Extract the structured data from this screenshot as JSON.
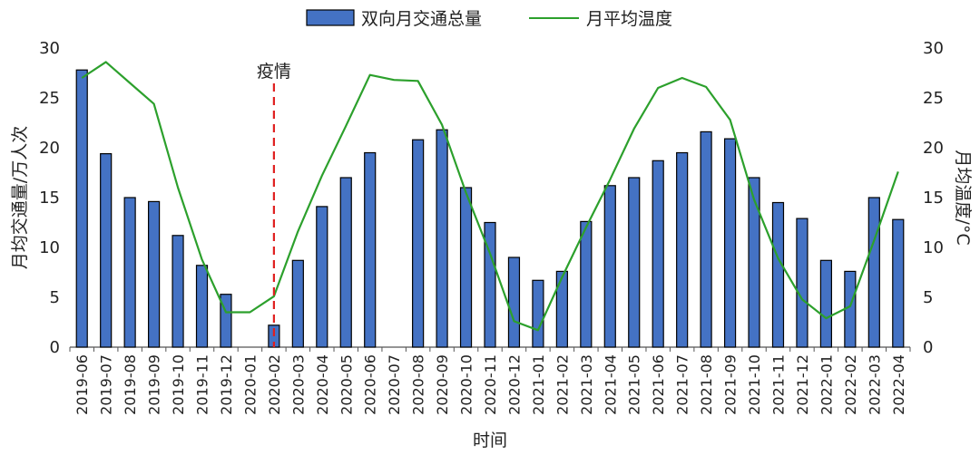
{
  "chart_data": {
    "type": "bar",
    "title": "",
    "xlabel": "时间",
    "ylabel": "月均交通量/万人次",
    "y2label": "月均温度/°C",
    "ylim": [
      0,
      30
    ],
    "y2lim": [
      0,
      30
    ],
    "yticks": [
      "0",
      "5",
      "10",
      "15",
      "20",
      "25",
      "30"
    ],
    "y2ticks": [
      "0",
      "5",
      "10",
      "15",
      "20",
      "25",
      "30"
    ],
    "legend_position": "top",
    "grid": false,
    "categories": [
      "2019-06",
      "2019-07",
      "2019-08",
      "2019-09",
      "2019-10",
      "2019-11",
      "2019-12",
      "2020-01",
      "2020-02",
      "2020-03",
      "2020-04",
      "2020-05",
      "2020-06",
      "2020-07",
      "2020-08",
      "2020-09",
      "2020-10",
      "2020-11",
      "2020-12",
      "2021-01",
      "2021-02",
      "2021-03",
      "2021-04",
      "2021-05",
      "2021-06",
      "2021-07",
      "2021-08",
      "2021-09",
      "2021-10",
      "2021-11",
      "2021-12",
      "2022-01",
      "2022-02",
      "2022-03",
      "2022-04"
    ],
    "series": [
      {
        "name": "双向月交通总量",
        "type": "bar",
        "axis": "left",
        "color": "#4472c4",
        "values": [
          27.8,
          19.4,
          15.0,
          14.6,
          11.2,
          8.2,
          5.3,
          null,
          2.2,
          8.7,
          14.1,
          17.0,
          19.5,
          null,
          20.8,
          21.8,
          16.0,
          12.5,
          9.0,
          6.7,
          7.6,
          12.6,
          16.2,
          17.0,
          18.7,
          19.5,
          21.6,
          20.9,
          17.0,
          14.5,
          12.9,
          8.7,
          7.6,
          15.0,
          12.8
        ]
      },
      {
        "name": "月平均温度",
        "type": "line",
        "axis": "right",
        "color": "#2ca02c",
        "values": [
          27.0,
          28.6,
          26.5,
          24.4,
          16.0,
          8.8,
          3.5,
          3.5,
          5.1,
          11.6,
          17.2,
          22.2,
          27.3,
          26.8,
          26.7,
          22.3,
          15.5,
          9.4,
          2.6,
          1.7,
          7.0,
          12.0,
          16.8,
          21.9,
          26.0,
          27.0,
          26.1,
          22.8,
          14.8,
          8.9,
          4.8,
          2.9,
          4.1,
          10.7,
          17.6
        ]
      }
    ],
    "annotations": [
      {
        "text": "疫情",
        "at_category": "2020-02",
        "style": "red dashed vertical line",
        "color": "#e02020"
      }
    ]
  }
}
